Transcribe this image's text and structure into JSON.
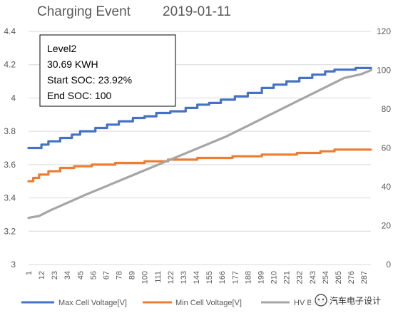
{
  "chart_data": {
    "type": "line",
    "title": "Charging Event",
    "date": "2019-01-11",
    "info_box": {
      "lines": [
        "Level2",
        "30.69  KWH",
        "Start SOC: 23.92%",
        "End SOC: 100"
      ]
    },
    "y_left": {
      "min": 3,
      "max": 4.4,
      "ticks": [
        "3",
        "3.2",
        "3.4",
        "3.6",
        "3.8",
        "4",
        "4.2",
        "4.4"
      ]
    },
    "y_right": {
      "min": 0,
      "max": 120,
      "ticks": [
        "0",
        "20",
        "40",
        "60",
        "80",
        "100",
        "120"
      ]
    },
    "x": {
      "min": 1,
      "max": 293,
      "ticks": [
        "1",
        "12",
        "23",
        "34",
        "45",
        "56",
        "67",
        "78",
        "89",
        "100",
        "111",
        "122",
        "133",
        "144",
        "155",
        "166",
        "177",
        "188",
        "199",
        "210",
        "221",
        "232",
        "243",
        "254",
        "265",
        "276",
        "287"
      ]
    },
    "grid": true,
    "legend_position": "bottom",
    "series": [
      {
        "name": "Max Cell Voltage[V]",
        "color": "#4472C4",
        "axis": "left",
        "points": [
          [
            1,
            3.7
          ],
          [
            8,
            3.7
          ],
          [
            12,
            3.72
          ],
          [
            18,
            3.74
          ],
          [
            28,
            3.76
          ],
          [
            38,
            3.78
          ],
          [
            45,
            3.8
          ],
          [
            58,
            3.82
          ],
          [
            68,
            3.84
          ],
          [
            78,
            3.86
          ],
          [
            90,
            3.88
          ],
          [
            100,
            3.89
          ],
          [
            110,
            3.91
          ],
          [
            122,
            3.92
          ],
          [
            135,
            3.94
          ],
          [
            145,
            3.96
          ],
          [
            155,
            3.97
          ],
          [
            165,
            3.99
          ],
          [
            177,
            4.01
          ],
          [
            188,
            4.03
          ],
          [
            200,
            4.06
          ],
          [
            210,
            4.08
          ],
          [
            221,
            4.1
          ],
          [
            232,
            4.12
          ],
          [
            243,
            4.14
          ],
          [
            254,
            4.16
          ],
          [
            262,
            4.17
          ],
          [
            270,
            4.17
          ],
          [
            280,
            4.18
          ],
          [
            293,
            4.17
          ]
        ]
      },
      {
        "name": "Min Cell Voltage[V]",
        "color": "#ED7D31",
        "axis": "left",
        "points": [
          [
            1,
            3.5
          ],
          [
            5,
            3.52
          ],
          [
            10,
            3.54
          ],
          [
            18,
            3.56
          ],
          [
            28,
            3.58
          ],
          [
            40,
            3.59
          ],
          [
            55,
            3.6
          ],
          [
            75,
            3.61
          ],
          [
            100,
            3.62
          ],
          [
            120,
            3.63
          ],
          [
            145,
            3.64
          ],
          [
            175,
            3.65
          ],
          [
            200,
            3.66
          ],
          [
            230,
            3.67
          ],
          [
            250,
            3.68
          ],
          [
            262,
            3.69
          ],
          [
            293,
            3.69
          ]
        ]
      },
      {
        "name": "HV Battery SOC[%]",
        "color": "#A5A5A5",
        "axis": "right",
        "points": [
          [
            1,
            24
          ],
          [
            10,
            25
          ],
          [
            20,
            28
          ],
          [
            35,
            32
          ],
          [
            50,
            36
          ],
          [
            70,
            41
          ],
          [
            90,
            46
          ],
          [
            110,
            51
          ],
          [
            130,
            56
          ],
          [
            150,
            61
          ],
          [
            170,
            66
          ],
          [
            190,
            72
          ],
          [
            210,
            78
          ],
          [
            230,
            84
          ],
          [
            250,
            90
          ],
          [
            270,
            96
          ],
          [
            285,
            98
          ],
          [
            293,
            100
          ]
        ]
      }
    ],
    "legend_labels": [
      "Max Cell Voltage[V]",
      "Min Cell Voltage[V]",
      "HV Battery SOC[%]"
    ]
  },
  "watermark": {
    "text": "汽车电子设计"
  }
}
